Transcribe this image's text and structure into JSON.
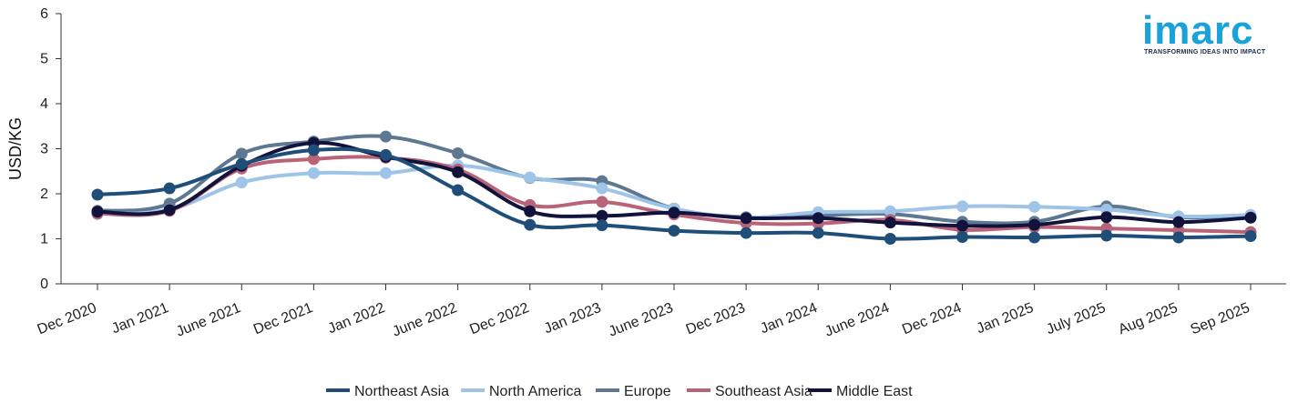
{
  "brand": {
    "name": "imarc",
    "tagline": "TRANSFORMING IDEAS INTO IMPACT",
    "color": "#1aa3d9"
  },
  "chart_data": {
    "type": "line",
    "title": "",
    "xlabel": "",
    "ylabel": "USD/KG",
    "ylim": [
      0,
      6
    ],
    "yticks": [
      0,
      1,
      2,
      3,
      4,
      5,
      6
    ],
    "grid": false,
    "legend_position": "bottom",
    "categories": [
      "Dec 2020",
      "Jan 2021",
      "June 2021",
      "Dec 2021",
      "Jan 2022",
      "June 2022",
      "Dec 2022",
      "Jan 2023",
      "June 2023",
      "Dec 2023",
      "Jan 2024",
      "June 2024",
      "Dec 2024",
      "Jan 2025",
      "July 2025",
      "Aug 2025",
      "Sep 2025"
    ],
    "series": [
      {
        "name": "Europe",
        "color": "#5f7891",
        "values": [
          1.62,
          1.78,
          2.89,
          3.16,
          3.27,
          2.9,
          2.35,
          2.28,
          1.67,
          1.48,
          1.52,
          1.55,
          1.38,
          1.38,
          1.72,
          1.48,
          1.52
        ]
      },
      {
        "name": "North America",
        "color": "#9ec4e8",
        "values": [
          1.55,
          1.65,
          2.25,
          2.46,
          2.46,
          2.63,
          2.36,
          2.12,
          1.67,
          1.47,
          1.59,
          1.61,
          1.72,
          1.71,
          1.65,
          1.5,
          1.53
        ]
      },
      {
        "name": "Southeast Asia",
        "color": "#b86378",
        "values": [
          1.56,
          1.62,
          2.56,
          2.77,
          2.8,
          2.54,
          1.75,
          1.82,
          1.54,
          1.35,
          1.34,
          1.42,
          1.2,
          1.26,
          1.23,
          1.19,
          1.15
        ]
      },
      {
        "name": "Middle East",
        "color": "#12133d",
        "values": [
          1.6,
          1.64,
          2.62,
          3.13,
          2.82,
          2.48,
          1.61,
          1.51,
          1.58,
          1.46,
          1.46,
          1.36,
          1.29,
          1.31,
          1.48,
          1.37,
          1.47
        ]
      },
      {
        "name": "Northeast Asia",
        "color": "#1f4e79",
        "values": [
          1.98,
          2.12,
          2.66,
          2.97,
          2.86,
          2.08,
          1.31,
          1.3,
          1.18,
          1.13,
          1.13,
          1.0,
          1.04,
          1.03,
          1.07,
          1.03,
          1.06
        ]
      }
    ],
    "legend_order": [
      "Northeast Asia",
      "North America",
      "Europe",
      "Southeast Asia",
      "Middle East"
    ]
  }
}
